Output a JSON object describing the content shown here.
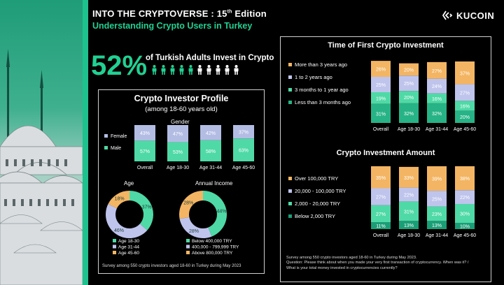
{
  "header": {
    "title_main": "INTO THE CRYPTOVERSE : 15",
    "title_sup": "th",
    "title_tail": " Edition",
    "subtitle": "Understanding Crypto Users in Turkey",
    "brand": "KUCOIN"
  },
  "headline": {
    "percent": "52%",
    "text": "of Turkish Adults Invest in Crypto",
    "highlighted_figures": 5,
    "total_figures": 10
  },
  "colors": {
    "accent": "#21d093",
    "blue": "#b3bde4",
    "light_green": "#4fd9a6",
    "mid_green": "#27b385",
    "orange": "#f3b563",
    "periwinkle": "#bfc4ec",
    "dark_green": "#1b9e76"
  },
  "profile": {
    "title": "Crypto Investor Profile",
    "subtitle": "(among 18-60 years old)",
    "gender_label": "Gender",
    "age_label": "Age",
    "income_label": "Annual Income",
    "footnote": "Survey among 550 crypto investors aged 18-60 in Turkey during May 2023"
  },
  "timing": {
    "title": "Time of First Crypto Investment"
  },
  "amount": {
    "title": "Crypto Investment Amount"
  },
  "right_footnote": {
    "line1": "Survey among 550 crypto investors aged 18-60 in Turkey  during May 2023.",
    "line2": "Question: Please think about when you made your very first transaction of cryptocurrency. When was it? /",
    "line3": "What is your total money invested in cryptocurrencies currently?"
  },
  "chart_data": [
    {
      "type": "bar",
      "id": "gender",
      "title": "Gender",
      "stacked": true,
      "categories": [
        "Overall",
        "Age 18-30",
        "Age 31-44",
        "Age 45-60"
      ],
      "series": [
        {
          "name": "Male",
          "values": [
            57,
            53,
            58,
            63
          ],
          "labels": [
            "57%",
            "53%",
            "58%",
            "63%"
          ],
          "color": "#4fd9a6"
        },
        {
          "name": "Female",
          "values": [
            43,
            47,
            42,
            37
          ],
          "labels": [
            "43%",
            "47%",
            "42%",
            "37%"
          ],
          "color": "#b3bde4"
        }
      ],
      "legend": [
        "Female",
        "Male"
      ],
      "ylim": [
        0,
        100
      ]
    },
    {
      "type": "pie",
      "id": "age",
      "title": "Age",
      "donut": true,
      "slices": [
        {
          "name": "Age 18-30",
          "value": 37,
          "label": "37%",
          "color": "#4fd9a6"
        },
        {
          "name": "Age 31-44",
          "value": 46,
          "label": "46%",
          "color": "#bfc4ec"
        },
        {
          "name": "Age 45-60",
          "value": 18,
          "label": "18%",
          "color": "#f3b563"
        }
      ]
    },
    {
      "type": "pie",
      "id": "income",
      "title": "Annual Income",
      "donut": true,
      "slices": [
        {
          "name": "Below 400,000 TRY",
          "value": 44,
          "label": "44%",
          "color": "#4fd9a6"
        },
        {
          "name": "400,000 - 799,999 TRY",
          "value": 28,
          "label": "28%",
          "color": "#bfc4ec"
        },
        {
          "name": "Above 800,000 TRY",
          "value": 28,
          "label": "28%",
          "color": "#f3b563"
        }
      ]
    },
    {
      "type": "bar",
      "id": "first_investment",
      "title": "Time of First Crypto Investment",
      "stacked": true,
      "categories": [
        "Overall",
        "Age 18-30",
        "Age 31-44",
        "Age 45-60"
      ],
      "series": [
        {
          "name": "Less than 3 months ago",
          "values": [
            31,
            32,
            32,
            20
          ],
          "labels": [
            "31%",
            "32%",
            "32%",
            "20%"
          ],
          "color": "#27b385"
        },
        {
          "name": "3 months to 1 year ago",
          "values": [
            19,
            20,
            16,
            16
          ],
          "labels": [
            "19%",
            "20%",
            "16%",
            "16%"
          ],
          "color": "#4fd9a6"
        },
        {
          "name": "1 to 2 years ago",
          "values": [
            25,
            25,
            24,
            27
          ],
          "labels": [
            "25%",
            "25%",
            "24%",
            "27%"
          ],
          "color": "#bfc4ec"
        },
        {
          "name": "More than 3 years ago",
          "values": [
            26,
            20,
            27,
            37
          ],
          "labels": [
            "26%",
            "20%",
            "27%",
            "37%"
          ],
          "color": "#f3b563"
        }
      ],
      "legend": [
        "More than 3 years ago",
        "1 to 2 years ago",
        "3 months to 1 year ago",
        "Less than 3 months ago"
      ],
      "ylim": [
        0,
        100
      ]
    },
    {
      "type": "bar",
      "id": "investment_amount",
      "title": "Crypto Investment Amount",
      "stacked": true,
      "categories": [
        "Overall",
        "Age 18-30",
        "Age 31-44",
        "Age 45-60"
      ],
      "series": [
        {
          "name": "Below 2,000 TRY",
          "values": [
            11,
            13,
            13,
            10
          ],
          "labels": [
            "11%",
            "13%",
            "13%",
            "10%"
          ],
          "color": "#1b9e76"
        },
        {
          "name": "2,000 - 20,000 TRY",
          "values": [
            27,
            31,
            23,
            30
          ],
          "labels": [
            "27%",
            "31%",
            "23%",
            "30%"
          ],
          "color": "#4fd9a6"
        },
        {
          "name": "20,000 - 100,000 TRY",
          "values": [
            27,
            22,
            25,
            22
          ],
          "labels": [
            "27%",
            "22%",
            "25%",
            "22%"
          ],
          "color": "#bfc4ec"
        },
        {
          "name": "Over 100,000 TRY",
          "values": [
            35,
            33,
            39,
            38
          ],
          "labels": [
            "35%",
            "33%",
            "39%",
            "38%"
          ],
          "color": "#f3b563"
        }
      ],
      "legend": [
        "Over 100,000 TRY",
        "20,000 - 100,000 TRY",
        "2,000 - 20,000 TRY",
        "Below 2,000 TRY"
      ],
      "ylim": [
        0,
        100
      ]
    }
  ]
}
